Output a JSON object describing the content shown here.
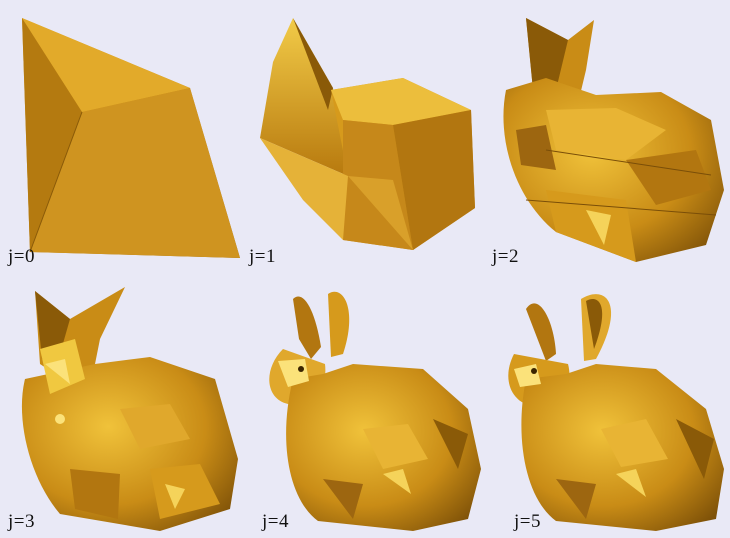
{
  "figure": {
    "panels": [
      {
        "label": "j=0",
        "level": 0
      },
      {
        "label": "j=1",
        "level": 1
      },
      {
        "label": "j=2",
        "level": 2
      },
      {
        "label": "j=3",
        "level": 3
      },
      {
        "label": "j=4",
        "level": 4
      },
      {
        "label": "j=5",
        "level": 5
      }
    ],
    "colors": {
      "background": "#e9e9f6",
      "mesh_light": "#f6d65a",
      "mesh_mid": "#d79a1c",
      "mesh_dark": "#7a4e08"
    }
  }
}
